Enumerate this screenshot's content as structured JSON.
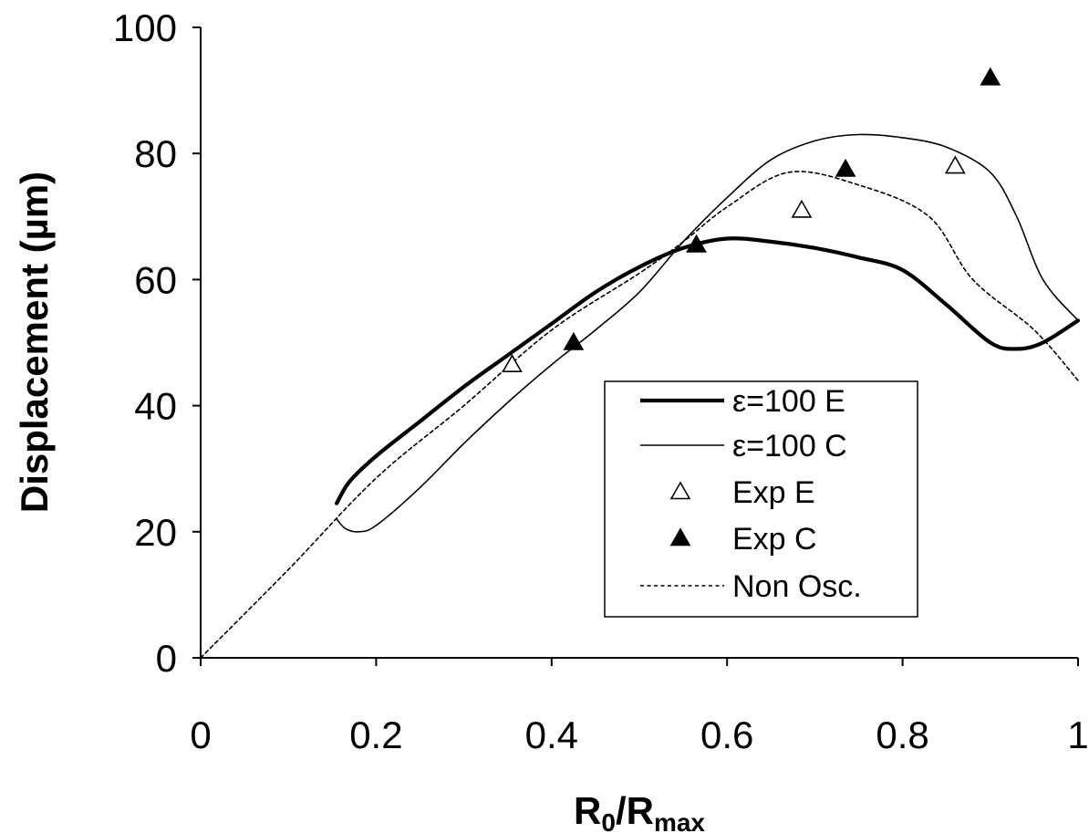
{
  "chart_data": {
    "type": "line",
    "title": "",
    "xlabel": {
      "main": "R",
      "sub1": "0",
      "sep": "/R",
      "sub2": "max"
    },
    "ylabel": "Displacement (µm)",
    "xlim": [
      0,
      1
    ],
    "ylim": [
      0,
      100
    ],
    "xticks": [
      "0",
      "0.2",
      "0.4",
      "0.6",
      "0.8",
      "1"
    ],
    "yticks": [
      "0",
      "20",
      "40",
      "60",
      "80",
      "100"
    ],
    "grid": false,
    "legend_position": "center-right",
    "series": [
      {
        "name": "ε=100 E",
        "style": "thick-solid",
        "color": "#000000",
        "x": [
          0.155,
          0.17,
          0.2,
          0.25,
          0.3,
          0.35,
          0.4,
          0.45,
          0.5,
          0.55,
          0.6,
          0.65,
          0.7,
          0.75,
          0.8,
          0.85,
          0.9,
          0.93,
          0.96,
          1.0
        ],
        "y": [
          24.5,
          28,
          32,
          37.5,
          43,
          48,
          53,
          58,
          62,
          65,
          66.5,
          66,
          65,
          63.5,
          61.5,
          56,
          50,
          49,
          50,
          53.5
        ]
      },
      {
        "name": "ε=100 C",
        "style": "thin-solid",
        "color": "#000000",
        "x": [
          0.155,
          0.165,
          0.18,
          0.2,
          0.25,
          0.3,
          0.35,
          0.4,
          0.45,
          0.5,
          0.55,
          0.6,
          0.65,
          0.7,
          0.75,
          0.8,
          0.85,
          0.9,
          0.93,
          0.96,
          1.0
        ],
        "y": [
          22,
          20.5,
          20,
          21,
          27,
          34,
          40.5,
          46.5,
          52,
          58,
          66,
          73,
          79,
          82,
          83,
          82.5,
          81,
          77,
          70,
          60,
          53.5
        ]
      },
      {
        "name": "Exp E",
        "style": "open-triangle",
        "color": "#000000",
        "x": [
          0.355,
          0.685,
          0.86
        ],
        "y": [
          46.5,
          71,
          78
        ]
      },
      {
        "name": "Exp C",
        "style": "filled-triangle",
        "color": "#000000",
        "x": [
          0.425,
          0.565,
          0.735,
          0.9
        ],
        "y": [
          50,
          65.5,
          77.5,
          92
        ]
      },
      {
        "name": "Non Osc.",
        "style": "dotted",
        "color": "#000000",
        "x": [
          0.0,
          0.1,
          0.2,
          0.3,
          0.4,
          0.5,
          0.55,
          0.6,
          0.67,
          0.75,
          0.83,
          0.88,
          0.95,
          1.0
        ],
        "y": [
          0,
          14,
          28.5,
          40,
          52,
          61,
          66,
          71.5,
          77,
          75,
          70,
          60,
          52,
          44
        ]
      }
    ]
  }
}
